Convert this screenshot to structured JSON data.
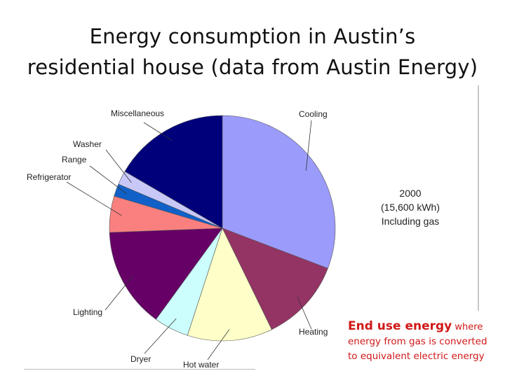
{
  "title": {
    "line1": "Energy consumption in Austin’s",
    "line2": "residential house (data from Austin Energy)"
  },
  "note": {
    "year": "2000",
    "total": "(15,600 kWh)",
    "including": "Including gas"
  },
  "caption": {
    "bold": "End use energy",
    "rest1": " where",
    "line2": "energy from gas is converted",
    "line3": "to equivalent electric energy"
  },
  "chart_data": {
    "type": "pie",
    "unit": "% of 15,600 kWh",
    "slices": [
      {
        "name": "Cooling",
        "value": 30.8,
        "color": "#9b9bfb"
      },
      {
        "name": "Heating",
        "value": 12.0,
        "color": "#943464"
      },
      {
        "name": "Hot water",
        "value": 12.2,
        "color": "#fefec8"
      },
      {
        "name": "Dryer",
        "value": 5.0,
        "color": "#ccfefe"
      },
      {
        "name": "Lighting",
        "value": 14.4,
        "color": "#660066"
      },
      {
        "name": "Refrigerator",
        "value": 5.2,
        "color": "#fa8080"
      },
      {
        "name": "Range",
        "value": 1.8,
        "color": "#1060c8"
      },
      {
        "name": "Washer",
        "value": 2.0,
        "color": "#c8c8f8"
      },
      {
        "name": "Miscellaneous",
        "value": 16.6,
        "color": "#00007a"
      }
    ]
  }
}
